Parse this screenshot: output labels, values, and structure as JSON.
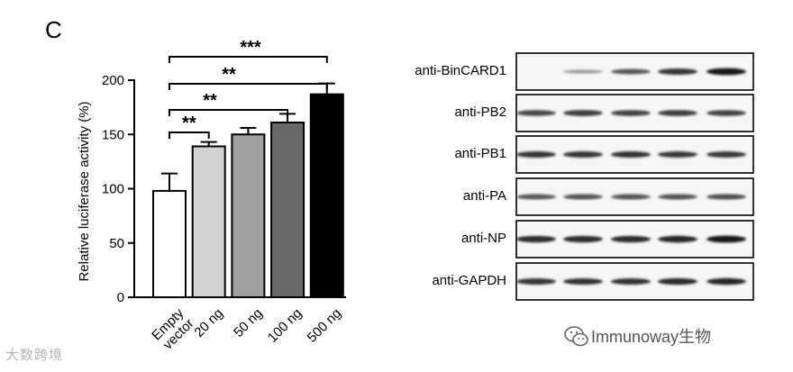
{
  "panel_letter": "C",
  "chart_data": {
    "type": "bar",
    "categories": [
      "Empty vector",
      "20 ng",
      "50 ng",
      "100 ng",
      "500 ng"
    ],
    "category_lines": [
      [
        "Empty",
        "vector"
      ],
      [
        "20 ng"
      ],
      [
        "50 ng"
      ],
      [
        "100 ng"
      ],
      [
        "500 ng"
      ]
    ],
    "values": [
      98,
      139,
      150,
      161,
      187
    ],
    "errors": [
      16,
      4,
      6,
      8,
      10
    ],
    "bar_colors": [
      "#ffffff",
      "#d3d3d3",
      "#a0a0a0",
      "#696969",
      "#000000"
    ],
    "ylabel": "Relative luciferase activity (%)",
    "ylim": [
      0,
      200
    ],
    "yticks": [
      "0",
      "50",
      "100",
      "150",
      "200"
    ],
    "significance": [
      {
        "from": "Empty vector",
        "to": "20 ng",
        "label": "**"
      },
      {
        "from": "Empty vector",
        "to": "100 ng",
        "label": "**"
      },
      {
        "from": "Empty vector",
        "to": "500 ng",
        "label": "**"
      },
      {
        "from": "Empty vector",
        "to": "500 ng",
        "label": "***"
      }
    ],
    "grid": false
  },
  "blot": {
    "rows": [
      {
        "label": "anti-BinCARD1",
        "intensities": [
          0.0,
          0.25,
          0.6,
          0.8,
          0.95
        ]
      },
      {
        "label": "anti-PB2",
        "intensities": [
          0.7,
          0.75,
          0.72,
          0.75,
          0.72
        ]
      },
      {
        "label": "anti-PB1",
        "intensities": [
          0.8,
          0.8,
          0.82,
          0.78,
          0.78
        ]
      },
      {
        "label": "anti-PA",
        "intensities": [
          0.6,
          0.62,
          0.62,
          0.62,
          0.65
        ]
      },
      {
        "label": "anti-NP",
        "intensities": [
          0.85,
          0.85,
          0.85,
          0.88,
          0.95
        ]
      },
      {
        "label": "anti-GAPDH",
        "intensities": [
          0.8,
          0.82,
          0.82,
          0.85,
          0.88
        ]
      }
    ]
  },
  "watermarks": {
    "left": "大数跨境",
    "right": "Immunoway生物"
  }
}
